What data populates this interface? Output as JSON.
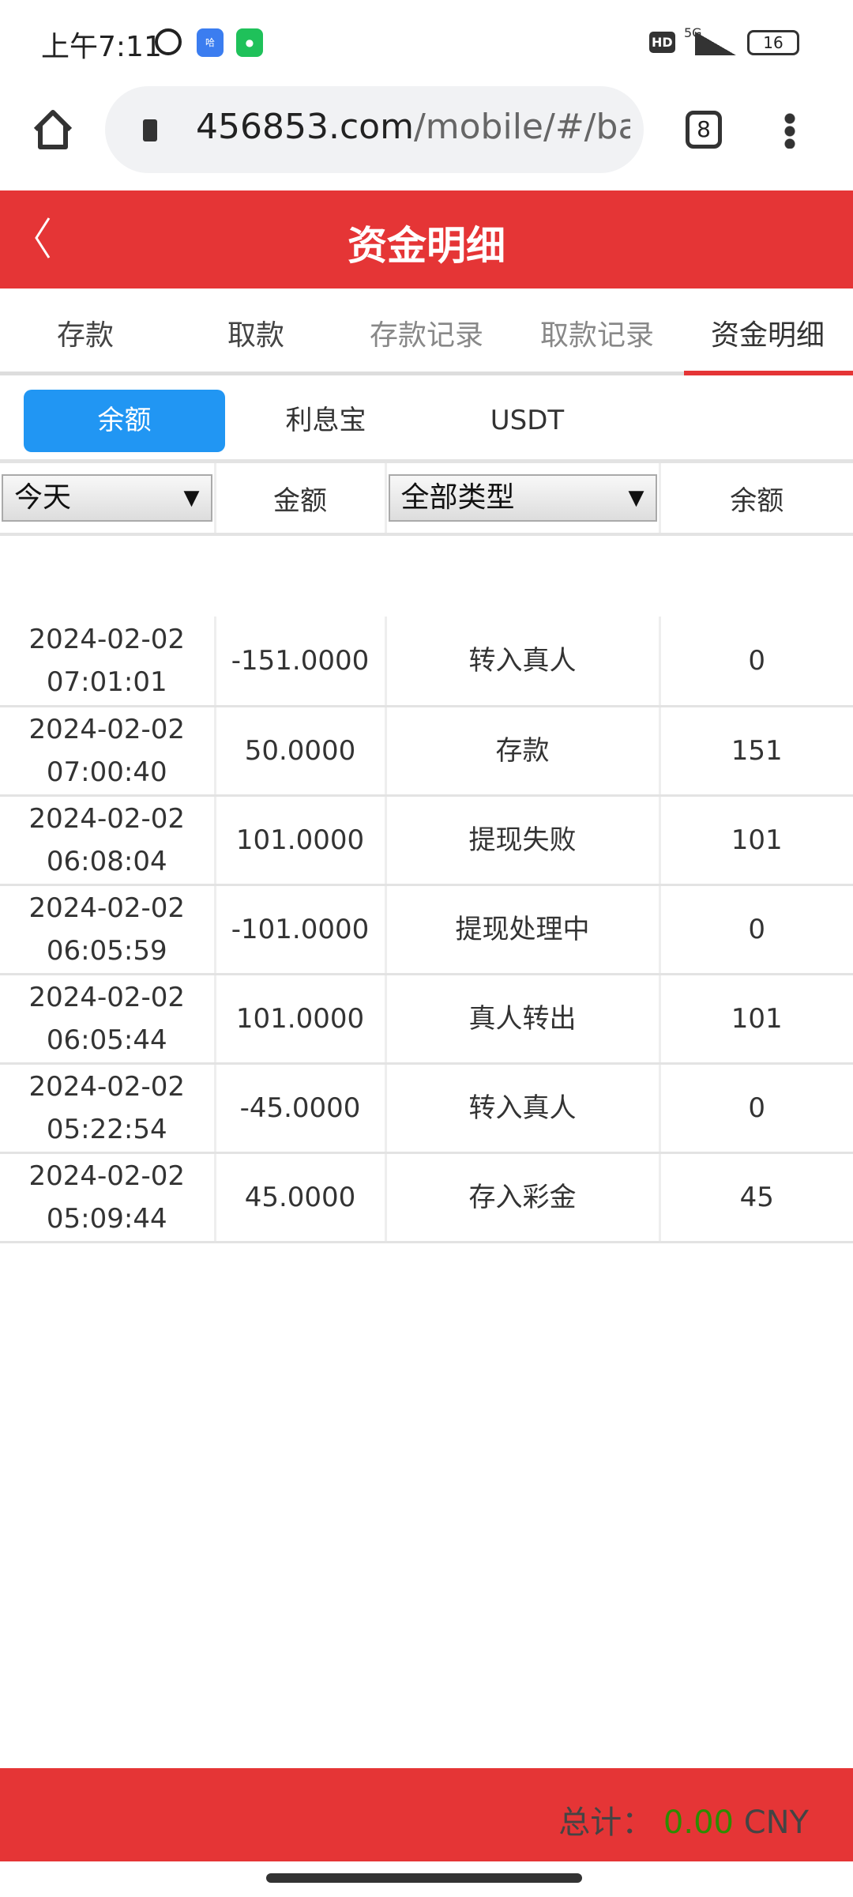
{
  "status_bar": {
    "time": "上午7:11",
    "network": "5G",
    "battery": "16",
    "hd": "HD"
  },
  "browser": {
    "url_host": "456853.com",
    "url_path": "/mobile/#/bar",
    "tab_count": "8"
  },
  "header": {
    "title": "资金明细"
  },
  "tabs": [
    {
      "label": "存款"
    },
    {
      "label": "取款"
    },
    {
      "label": "存款记录"
    },
    {
      "label": "取款记录"
    },
    {
      "label": "资金明细",
      "active": true
    }
  ],
  "subtabs": [
    {
      "label": "余额",
      "active": true
    },
    {
      "label": "利息宝"
    },
    {
      "label": "USDT"
    }
  ],
  "table": {
    "date_filter": "今天",
    "amount_header": "金额",
    "type_filter": "全部类型",
    "balance_header": "余额",
    "rows": [
      {
        "date": "2024-02-02",
        "time": "07:01:01",
        "amount": "-151.0000",
        "type": "转入真人",
        "balance": "0"
      },
      {
        "date": "2024-02-02",
        "time": "07:00:40",
        "amount": "50.0000",
        "type": "存款",
        "balance": "151"
      },
      {
        "date": "2024-02-02",
        "time": "06:08:04",
        "amount": "101.0000",
        "type": "提现失败",
        "balance": "101"
      },
      {
        "date": "2024-02-02",
        "time": "06:05:59",
        "amount": "-101.0000",
        "type": "提现处理中",
        "balance": "0"
      },
      {
        "date": "2024-02-02",
        "time": "06:05:44",
        "amount": "101.0000",
        "type": "真人转出",
        "balance": "101"
      },
      {
        "date": "2024-02-02",
        "time": "05:22:54",
        "amount": "-45.0000",
        "type": "转入真人",
        "balance": "0"
      },
      {
        "date": "2024-02-02",
        "time": "05:09:44",
        "amount": "45.0000",
        "type": "存入彩金",
        "balance": "45"
      }
    ]
  },
  "footer": {
    "total_label": "总计：",
    "total_value": "0.00",
    "currency": "CNY"
  },
  "colors": {
    "brand_red": "#e53536",
    "active_blue": "#2196f3",
    "total_green": "#2e8b00"
  }
}
